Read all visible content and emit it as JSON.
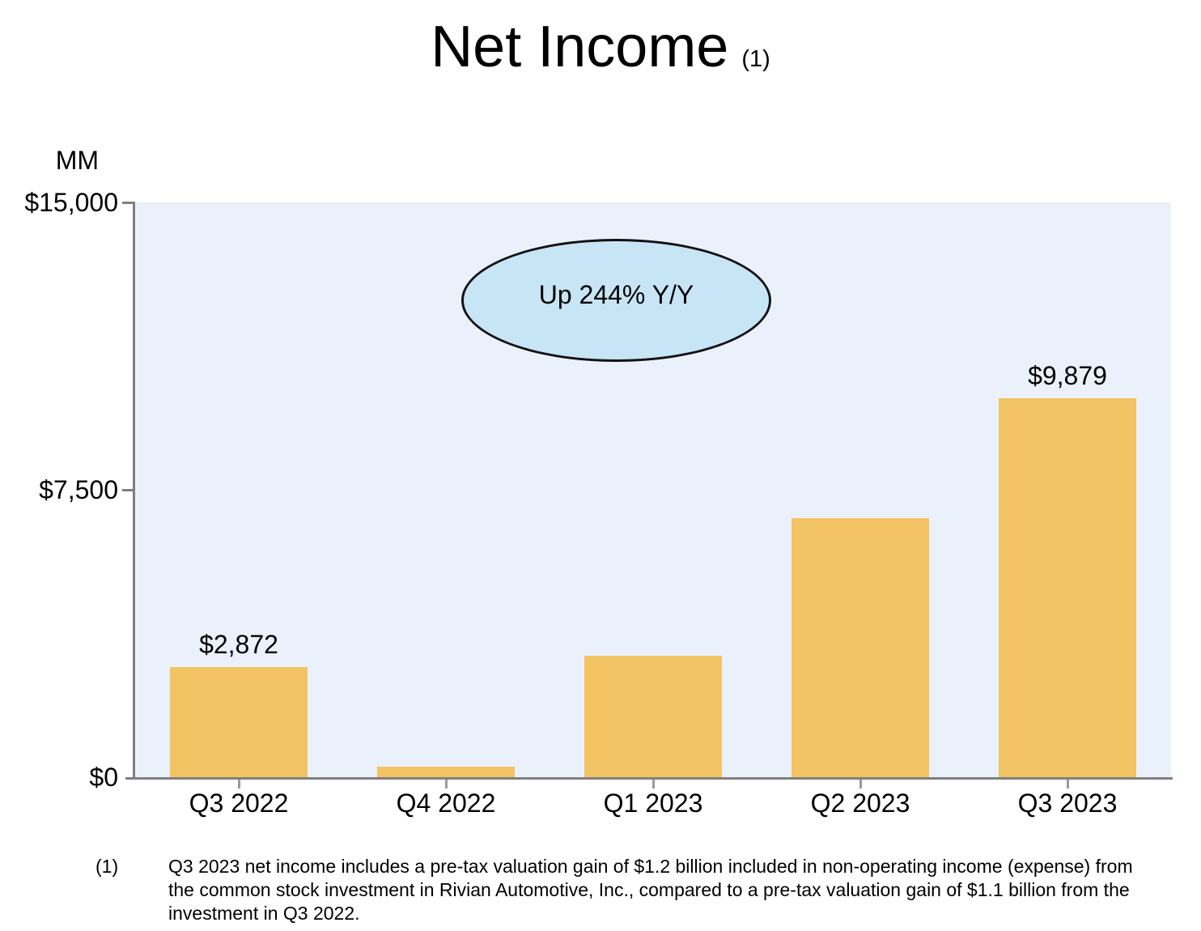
{
  "title": {
    "text": "Net Income",
    "footnote_ref": "(1)"
  },
  "y_axis": {
    "unit_label": "MM"
  },
  "callout": {
    "text": "Up 244% Y/Y"
  },
  "footnote": {
    "marker": "(1)",
    "lines": [
      "Q3 2023 net income includes a pre-tax valuation gain of $1.2 billion included in non-operating income (expense) from",
      "the common stock investment in Rivian Automotive, Inc., compared to a pre-tax valuation gain of $1.1 billion from the",
      "investment in Q3 2022."
    ]
  },
  "colors": {
    "bar": "#F2C363",
    "plot_background": "#EBF1FB",
    "callout_fill": "#C8E5F6",
    "axis": "#808080",
    "text": "#000000"
  },
  "chart_data": {
    "type": "bar",
    "title": "Net Income",
    "unit": "MM",
    "categories": [
      "Q3 2022",
      "Q4 2022",
      "Q1 2023",
      "Q2 2023",
      "Q3 2023"
    ],
    "values": [
      2872,
      278,
      3172,
      6750,
      9879
    ],
    "data_labels": [
      "$2,872",
      null,
      null,
      null,
      "$9,879"
    ],
    "ylim": [
      0,
      15000
    ],
    "y_ticks": [
      {
        "value": 15000,
        "label": "$15,000"
      },
      {
        "value": 7500,
        "label": "$7,500"
      },
      {
        "value": 0,
        "label": "$0"
      }
    ],
    "grid": false,
    "legend": false,
    "annotation": "Up 244% Y/Y",
    "bar_color": "#F2C363"
  }
}
